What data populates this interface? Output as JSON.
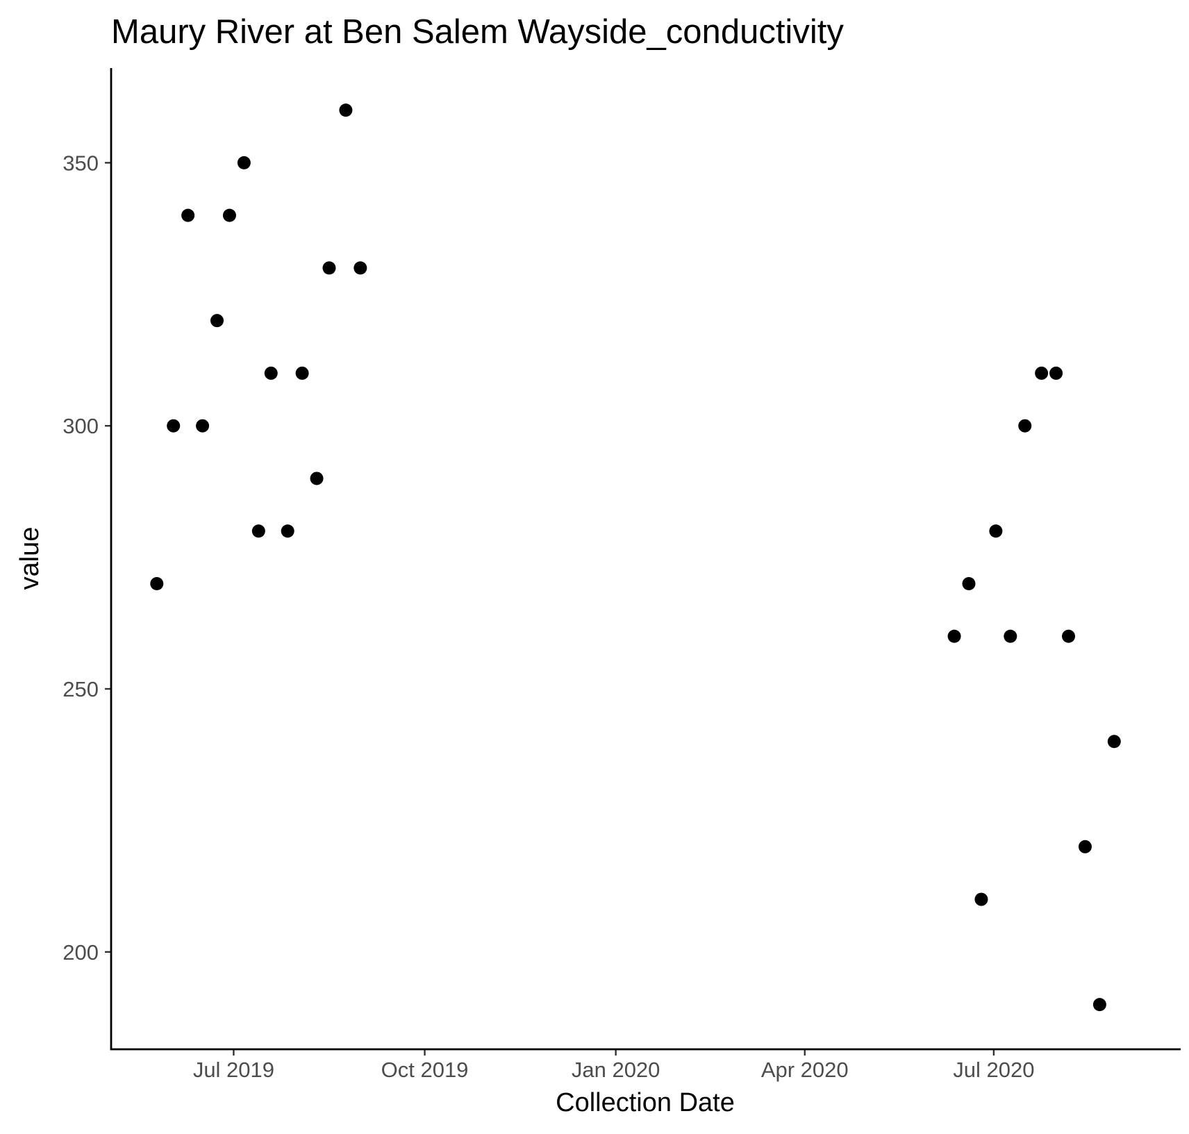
{
  "chart_data": {
    "type": "scatter",
    "title": "Maury River at Ben Salem Wayside_conductivity",
    "xlabel": "Collection Date",
    "ylabel": "value",
    "x_scale": "date",
    "xlim": [
      "2019-05-03",
      "2020-09-29"
    ],
    "ylim": [
      181.5,
      368
    ],
    "x_ticks": [
      {
        "date": "2019-07-01",
        "label": "Jul 2019"
      },
      {
        "date": "2019-10-01",
        "label": "Oct 2019"
      },
      {
        "date": "2020-01-01",
        "label": "Jan 2020"
      },
      {
        "date": "2020-04-01",
        "label": "Apr 2020"
      },
      {
        "date": "2020-07-01",
        "label": "Jul 2020"
      }
    ],
    "y_ticks": [
      {
        "value": 200,
        "label": "200"
      },
      {
        "value": 250,
        "label": "250"
      },
      {
        "value": 300,
        "label": "300"
      },
      {
        "value": 350,
        "label": "350"
      }
    ],
    "grid": false,
    "legend": "none",
    "point_color": "#000000",
    "points": [
      {
        "x": "2019-05-25",
        "y": 270
      },
      {
        "x": "2019-06-02",
        "y": 300
      },
      {
        "x": "2019-06-09",
        "y": 340
      },
      {
        "x": "2019-06-16",
        "y": 300
      },
      {
        "x": "2019-06-23",
        "y": 320
      },
      {
        "x": "2019-06-29",
        "y": 340
      },
      {
        "x": "2019-07-06",
        "y": 350
      },
      {
        "x": "2019-07-13",
        "y": 280
      },
      {
        "x": "2019-07-19",
        "y": 310
      },
      {
        "x": "2019-07-27",
        "y": 280
      },
      {
        "x": "2019-08-03",
        "y": 310
      },
      {
        "x": "2019-08-10",
        "y": 290
      },
      {
        "x": "2019-08-16",
        "y": 330
      },
      {
        "x": "2019-08-24",
        "y": 360
      },
      {
        "x": "2019-08-31",
        "y": 330
      },
      {
        "x": "2020-06-12",
        "y": 260
      },
      {
        "x": "2020-06-19",
        "y": 270
      },
      {
        "x": "2020-06-25",
        "y": 210
      },
      {
        "x": "2020-07-02",
        "y": 280
      },
      {
        "x": "2020-07-09",
        "y": 260
      },
      {
        "x": "2020-07-16",
        "y": 300
      },
      {
        "x": "2020-07-24",
        "y": 310
      },
      {
        "x": "2020-07-31",
        "y": 310
      },
      {
        "x": "2020-08-06",
        "y": 260
      },
      {
        "x": "2020-08-14",
        "y": 220
      },
      {
        "x": "2020-08-21",
        "y": 190
      },
      {
        "x": "2020-08-28",
        "y": 240
      }
    ]
  }
}
